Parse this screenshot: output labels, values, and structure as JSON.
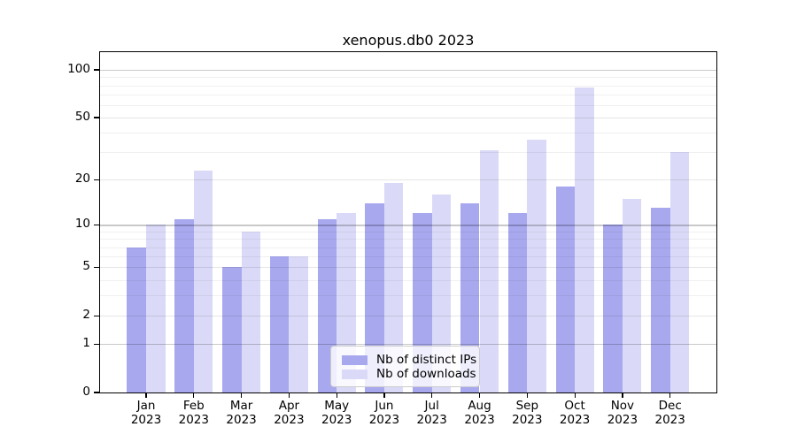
{
  "title": "xenopus.db0 2023",
  "chart_data": {
    "type": "bar",
    "title": "xenopus.db0 2023",
    "categories": [
      "Jan",
      "Feb",
      "Mar",
      "Apr",
      "May",
      "Jun",
      "Jul",
      "Aug",
      "Sep",
      "Oct",
      "Nov",
      "Dec"
    ],
    "x_year_label": "2023",
    "series": [
      {
        "name": "Nb of distinct IPs",
        "color": "#a8a8ef",
        "values": [
          7,
          11,
          5,
          6,
          11,
          14,
          12,
          14,
          12,
          18,
          10,
          13
        ]
      },
      {
        "name": "Nb of downloads",
        "color": "#dadaf8",
        "values": [
          10,
          23,
          9,
          6,
          12,
          19,
          16,
          31,
          36,
          77,
          15,
          30
        ]
      }
    ],
    "xlabel": "",
    "ylabel": "",
    "yscale": "log10(value+1)",
    "ylim": [
      0,
      130
    ],
    "yticks": [
      0,
      1,
      2,
      5,
      10,
      20,
      50,
      100
    ],
    "y_power_gridlines": [
      1,
      10,
      100
    ],
    "y_mid_gridlines": [
      2,
      5,
      20,
      50
    ],
    "y_minor_gridlines": [
      3,
      4,
      6,
      7,
      8,
      9,
      30,
      40,
      60,
      70,
      80,
      90
    ],
    "grid": true,
    "legend_position": "lower center",
    "background_color": "#ffffff"
  }
}
